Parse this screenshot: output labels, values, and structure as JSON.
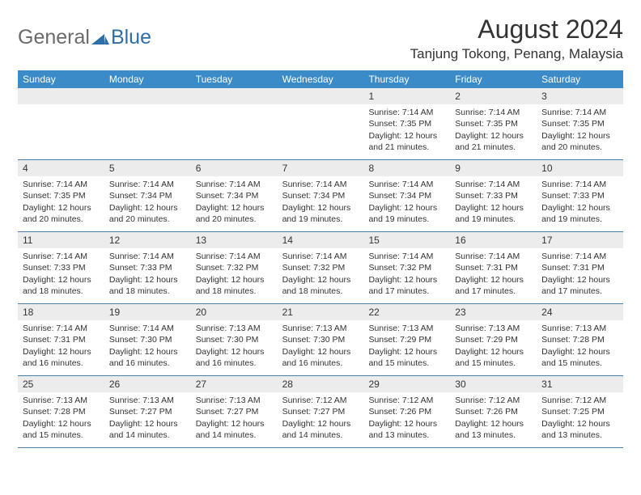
{
  "logo": {
    "general": "General",
    "blue": "Blue"
  },
  "title": "August 2024",
  "location": "Tanjung Tokong, Penang, Malaysia",
  "colors": {
    "header_bg": "#3b8bc8",
    "header_text": "#ffffff",
    "daynum_bg": "#ececec",
    "text": "#333333",
    "week_border": "#4a7fa8",
    "logo_blue": "#2f6fa8"
  },
  "day_names": [
    "Sunday",
    "Monday",
    "Tuesday",
    "Wednesday",
    "Thursday",
    "Friday",
    "Saturday"
  ],
  "weeks": [
    [
      {
        "n": "",
        "sr": "",
        "ss": "",
        "dl": ""
      },
      {
        "n": "",
        "sr": "",
        "ss": "",
        "dl": ""
      },
      {
        "n": "",
        "sr": "",
        "ss": "",
        "dl": ""
      },
      {
        "n": "",
        "sr": "",
        "ss": "",
        "dl": ""
      },
      {
        "n": "1",
        "sr": "7:14 AM",
        "ss": "7:35 PM",
        "dl": "12 hours and 21 minutes."
      },
      {
        "n": "2",
        "sr": "7:14 AM",
        "ss": "7:35 PM",
        "dl": "12 hours and 21 minutes."
      },
      {
        "n": "3",
        "sr": "7:14 AM",
        "ss": "7:35 PM",
        "dl": "12 hours and 20 minutes."
      }
    ],
    [
      {
        "n": "4",
        "sr": "7:14 AM",
        "ss": "7:35 PM",
        "dl": "12 hours and 20 minutes."
      },
      {
        "n": "5",
        "sr": "7:14 AM",
        "ss": "7:34 PM",
        "dl": "12 hours and 20 minutes."
      },
      {
        "n": "6",
        "sr": "7:14 AM",
        "ss": "7:34 PM",
        "dl": "12 hours and 20 minutes."
      },
      {
        "n": "7",
        "sr": "7:14 AM",
        "ss": "7:34 PM",
        "dl": "12 hours and 19 minutes."
      },
      {
        "n": "8",
        "sr": "7:14 AM",
        "ss": "7:34 PM",
        "dl": "12 hours and 19 minutes."
      },
      {
        "n": "9",
        "sr": "7:14 AM",
        "ss": "7:33 PM",
        "dl": "12 hours and 19 minutes."
      },
      {
        "n": "10",
        "sr": "7:14 AM",
        "ss": "7:33 PM",
        "dl": "12 hours and 19 minutes."
      }
    ],
    [
      {
        "n": "11",
        "sr": "7:14 AM",
        "ss": "7:33 PM",
        "dl": "12 hours and 18 minutes."
      },
      {
        "n": "12",
        "sr": "7:14 AM",
        "ss": "7:33 PM",
        "dl": "12 hours and 18 minutes."
      },
      {
        "n": "13",
        "sr": "7:14 AM",
        "ss": "7:32 PM",
        "dl": "12 hours and 18 minutes."
      },
      {
        "n": "14",
        "sr": "7:14 AM",
        "ss": "7:32 PM",
        "dl": "12 hours and 18 minutes."
      },
      {
        "n": "15",
        "sr": "7:14 AM",
        "ss": "7:32 PM",
        "dl": "12 hours and 17 minutes."
      },
      {
        "n": "16",
        "sr": "7:14 AM",
        "ss": "7:31 PM",
        "dl": "12 hours and 17 minutes."
      },
      {
        "n": "17",
        "sr": "7:14 AM",
        "ss": "7:31 PM",
        "dl": "12 hours and 17 minutes."
      }
    ],
    [
      {
        "n": "18",
        "sr": "7:14 AM",
        "ss": "7:31 PM",
        "dl": "12 hours and 16 minutes."
      },
      {
        "n": "19",
        "sr": "7:14 AM",
        "ss": "7:30 PM",
        "dl": "12 hours and 16 minutes."
      },
      {
        "n": "20",
        "sr": "7:13 AM",
        "ss": "7:30 PM",
        "dl": "12 hours and 16 minutes."
      },
      {
        "n": "21",
        "sr": "7:13 AM",
        "ss": "7:30 PM",
        "dl": "12 hours and 16 minutes."
      },
      {
        "n": "22",
        "sr": "7:13 AM",
        "ss": "7:29 PM",
        "dl": "12 hours and 15 minutes."
      },
      {
        "n": "23",
        "sr": "7:13 AM",
        "ss": "7:29 PM",
        "dl": "12 hours and 15 minutes."
      },
      {
        "n": "24",
        "sr": "7:13 AM",
        "ss": "7:28 PM",
        "dl": "12 hours and 15 minutes."
      }
    ],
    [
      {
        "n": "25",
        "sr": "7:13 AM",
        "ss": "7:28 PM",
        "dl": "12 hours and 15 minutes."
      },
      {
        "n": "26",
        "sr": "7:13 AM",
        "ss": "7:27 PM",
        "dl": "12 hours and 14 minutes."
      },
      {
        "n": "27",
        "sr": "7:13 AM",
        "ss": "7:27 PM",
        "dl": "12 hours and 14 minutes."
      },
      {
        "n": "28",
        "sr": "7:12 AM",
        "ss": "7:27 PM",
        "dl": "12 hours and 14 minutes."
      },
      {
        "n": "29",
        "sr": "7:12 AM",
        "ss": "7:26 PM",
        "dl": "12 hours and 13 minutes."
      },
      {
        "n": "30",
        "sr": "7:12 AM",
        "ss": "7:26 PM",
        "dl": "12 hours and 13 minutes."
      },
      {
        "n": "31",
        "sr": "7:12 AM",
        "ss": "7:25 PM",
        "dl": "12 hours and 13 minutes."
      }
    ]
  ],
  "labels": {
    "sunrise": "Sunrise:",
    "sunset": "Sunset:",
    "daylight": "Daylight:"
  }
}
